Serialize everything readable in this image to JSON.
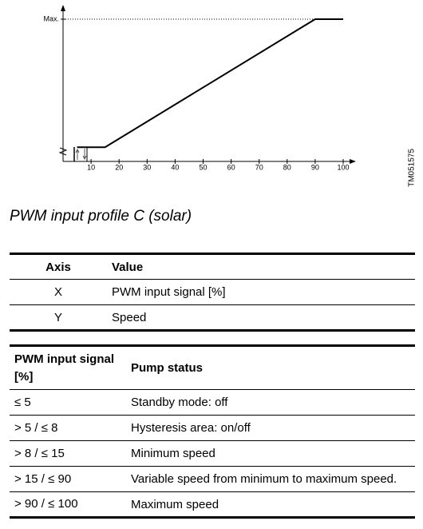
{
  "chart_data": {
    "type": "line",
    "x": [
      5,
      15,
      90,
      100
    ],
    "series": [
      {
        "values": [
          10,
          10,
          100,
          100
        ],
        "color": "#000000"
      }
    ],
    "xlim": [
      0,
      100
    ],
    "xticks": [
      10,
      20,
      30,
      40,
      50,
      60,
      70,
      80,
      90,
      100
    ],
    "ylim": [
      0,
      100
    ],
    "yticks": [
      {
        "value": 100,
        "label": "Max."
      }
    ],
    "figure_id": "TM051575"
  },
  "caption": "PWM input profile C (solar)",
  "axis_table": {
    "header": [
      "Axis",
      "Value"
    ],
    "rows": [
      [
        "X",
        "PWM input signal [%]"
      ],
      [
        "Y",
        "Speed"
      ]
    ]
  },
  "status_table": {
    "header": [
      "PWM input signal [%]",
      "Pump status"
    ],
    "rows": [
      [
        "≤ 5",
        "Standby mode: off"
      ],
      [
        "> 5 / ≤ 8",
        "Hysteresis area: on/off"
      ],
      [
        "> 8 / ≤ 15",
        "Minimum speed"
      ],
      [
        "> 15 / ≤ 90",
        "Variable speed from minimum to maximum speed."
      ],
      [
        "> 90 / ≤ 100",
        "Maximum speed"
      ]
    ]
  }
}
